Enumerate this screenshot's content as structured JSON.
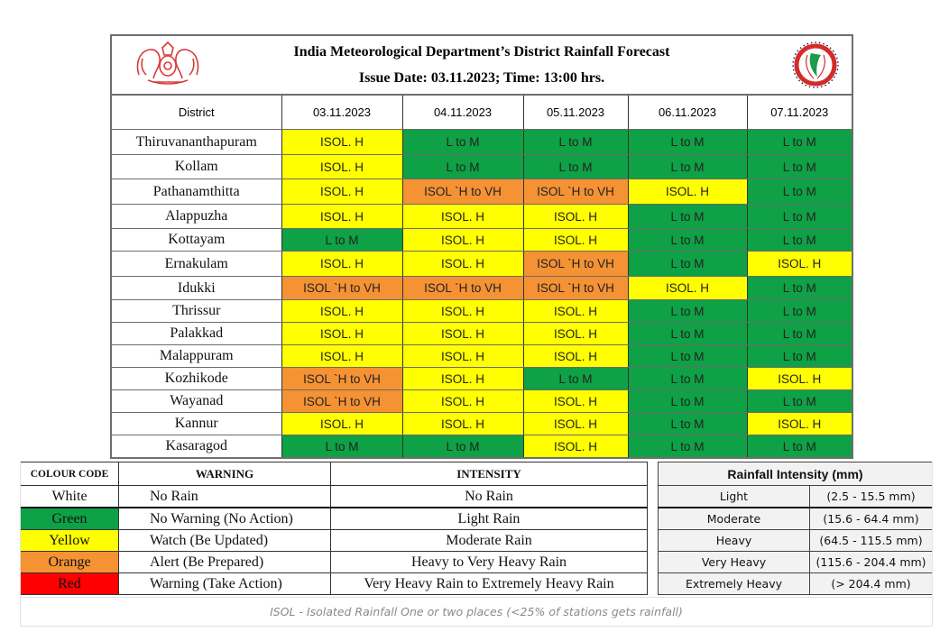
{
  "header": {
    "title": "India Meteorological Department’s District Rainfall Forecast",
    "issue_line": "Issue Date: 03.11.2023; Time: 13:00 hrs.",
    "left_logo": "kerala-emblem-icon",
    "right_logo": "imd-logo-icon"
  },
  "colors": {
    "green": "#0ea145",
    "yellow": "#ffff00",
    "orange": "#f59234",
    "red": "#ff0000",
    "white": "#ffffff"
  },
  "forecast": {
    "columns": [
      "District",
      "03.11.2023",
      "04.11.2023",
      "05.11.2023",
      "06.11.2023",
      "07.11.2023"
    ],
    "rows": [
      {
        "district": "Thiruvananthapuram",
        "cells": [
          {
            "text": "ISOL. H",
            "color": "yellow"
          },
          {
            "text": "L to M",
            "color": "green"
          },
          {
            "text": "L to M",
            "color": "green"
          },
          {
            "text": "L to M",
            "color": "green"
          },
          {
            "text": "L to M",
            "color": "green"
          }
        ]
      },
      {
        "district": "Kollam",
        "cells": [
          {
            "text": "ISOL. H",
            "color": "yellow"
          },
          {
            "text": "L to M",
            "color": "green"
          },
          {
            "text": "L to M",
            "color": "green"
          },
          {
            "text": "L to M",
            "color": "green"
          },
          {
            "text": "L to M",
            "color": "green"
          }
        ]
      },
      {
        "district": "Pathanamthitta",
        "cells": [
          {
            "text": "ISOL. H",
            "color": "yellow"
          },
          {
            "text": "ISOL `H to VH",
            "color": "orange"
          },
          {
            "text": "ISOL `H to VH",
            "color": "orange"
          },
          {
            "text": "ISOL. H",
            "color": "yellow"
          },
          {
            "text": "L to M",
            "color": "green"
          }
        ]
      },
      {
        "district": "Alappuzha",
        "cells": [
          {
            "text": "ISOL. H",
            "color": "yellow"
          },
          {
            "text": "ISOL. H",
            "color": "yellow"
          },
          {
            "text": "ISOL. H",
            "color": "yellow"
          },
          {
            "text": "L to M",
            "color": "green"
          },
          {
            "text": "L to M",
            "color": "green"
          }
        ]
      },
      {
        "district": "Kottayam",
        "cells": [
          {
            "text": "L to M",
            "color": "green"
          },
          {
            "text": "ISOL. H",
            "color": "yellow"
          },
          {
            "text": "ISOL. H",
            "color": "yellow"
          },
          {
            "text": "L to M",
            "color": "green"
          },
          {
            "text": "L to M",
            "color": "green"
          }
        ]
      },
      {
        "district": "Ernakulam",
        "cells": [
          {
            "text": "ISOL. H",
            "color": "yellow"
          },
          {
            "text": "ISOL. H",
            "color": "yellow"
          },
          {
            "text": "ISOL `H to VH",
            "color": "orange"
          },
          {
            "text": "L to M",
            "color": "green"
          },
          {
            "text": "ISOL. H",
            "color": "yellow"
          }
        ]
      },
      {
        "district": "Idukki",
        "cells": [
          {
            "text": "ISOL `H to VH",
            "color": "orange"
          },
          {
            "text": "ISOL `H to VH",
            "color": "orange"
          },
          {
            "text": "ISOL `H to VH",
            "color": "orange"
          },
          {
            "text": "ISOL. H",
            "color": "yellow"
          },
          {
            "text": "L to M",
            "color": "green"
          }
        ]
      },
      {
        "district": "Thrissur",
        "cells": [
          {
            "text": "ISOL. H",
            "color": "yellow"
          },
          {
            "text": "ISOL. H",
            "color": "yellow"
          },
          {
            "text": "ISOL. H",
            "color": "yellow"
          },
          {
            "text": "L to M",
            "color": "green"
          },
          {
            "text": "L to M",
            "color": "green"
          }
        ]
      },
      {
        "district": "Palakkad",
        "cells": [
          {
            "text": "ISOL. H",
            "color": "yellow"
          },
          {
            "text": "ISOL. H",
            "color": "yellow"
          },
          {
            "text": "ISOL. H",
            "color": "yellow"
          },
          {
            "text": "L to M",
            "color": "green"
          },
          {
            "text": "L to M",
            "color": "green"
          }
        ]
      },
      {
        "district": "Malappuram",
        "cells": [
          {
            "text": "ISOL. H",
            "color": "yellow"
          },
          {
            "text": "ISOL. H",
            "color": "yellow"
          },
          {
            "text": "ISOL. H",
            "color": "yellow"
          },
          {
            "text": "L to M",
            "color": "green"
          },
          {
            "text": "L to M",
            "color": "green"
          }
        ]
      },
      {
        "district": "Kozhikode",
        "cells": [
          {
            "text": "ISOL `H to VH",
            "color": "orange"
          },
          {
            "text": "ISOL. H",
            "color": "yellow"
          },
          {
            "text": "L to M",
            "color": "green"
          },
          {
            "text": "L to M",
            "color": "green"
          },
          {
            "text": "ISOL. H",
            "color": "yellow"
          }
        ]
      },
      {
        "district": "Wayanad",
        "cells": [
          {
            "text": "ISOL `H to VH",
            "color": "orange"
          },
          {
            "text": "ISOL. H",
            "color": "yellow"
          },
          {
            "text": "ISOL. H",
            "color": "yellow"
          },
          {
            "text": "L to M",
            "color": "green"
          },
          {
            "text": "L to M",
            "color": "green"
          }
        ]
      },
      {
        "district": "Kannur",
        "cells": [
          {
            "text": "ISOL. H",
            "color": "yellow"
          },
          {
            "text": "ISOL. H",
            "color": "yellow"
          },
          {
            "text": "ISOL. H",
            "color": "yellow"
          },
          {
            "text": "L to M",
            "color": "green"
          },
          {
            "text": "ISOL. H",
            "color": "yellow"
          }
        ]
      },
      {
        "district": "Kasaragod",
        "cells": [
          {
            "text": "L to M",
            "color": "green"
          },
          {
            "text": "L to M",
            "color": "green"
          },
          {
            "text": "ISOL. H",
            "color": "yellow"
          },
          {
            "text": "L to M",
            "color": "green"
          },
          {
            "text": "L to M",
            "color": "green"
          }
        ]
      }
    ]
  },
  "legend": {
    "headers": [
      "COLOUR CODE",
      "WARNING",
      "INTENSITY"
    ],
    "rows": [
      {
        "code": "White",
        "color": "white",
        "warning": "No Rain",
        "intensity": "No Rain"
      },
      {
        "code": "Green",
        "color": "green",
        "warning": "No Warning (No Action)",
        "intensity": "Light Rain"
      },
      {
        "code": "Yellow",
        "color": "yellow",
        "warning": "Watch (Be Updated)",
        "intensity": "Moderate Rain"
      },
      {
        "code": "Orange",
        "color": "orange",
        "warning": "Alert (Be Prepared)",
        "intensity": "Heavy to Very Heavy Rain"
      },
      {
        "code": "Red",
        "color": "red",
        "warning": "Warning (Take Action)",
        "intensity": "Very Heavy Rain to Extremely Heavy Rain"
      }
    ]
  },
  "rainfall_intensity": {
    "title": "Rainfall Intensity (mm)",
    "rows": [
      {
        "label": "Light",
        "range": "(2.5 - 15.5 mm)"
      },
      {
        "label": "Moderate",
        "range": "(15.6 - 64.4 mm)"
      },
      {
        "label": "Heavy",
        "range": "(64.5 - 115.5 mm)"
      },
      {
        "label": "Very Heavy",
        "range": "(115.6 - 204.4 mm)"
      },
      {
        "label": "Extremely Heavy",
        "range": "(> 204.4 mm)"
      }
    ]
  },
  "footnote": "ISOL - Isolated Rainfall One or two places (<25% of stations gets rainfall)"
}
